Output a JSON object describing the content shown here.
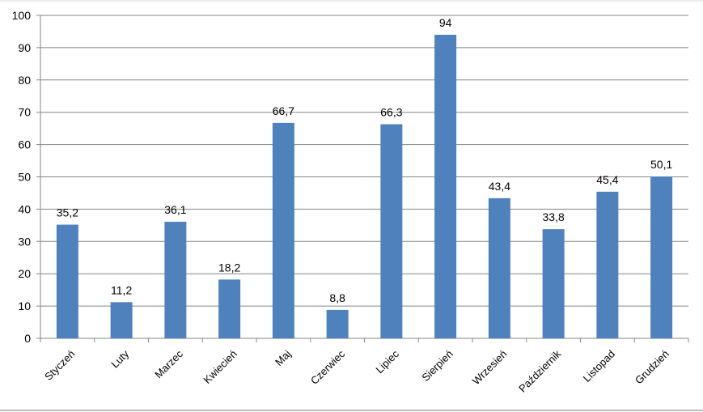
{
  "chart_data": {
    "type": "bar",
    "categories": [
      "Styczeń",
      "Luty",
      "Marzec",
      "Kwiecień",
      "Maj",
      "Czerwiec",
      "Lipiec",
      "Sierpień",
      "Wrzesień",
      "Październik",
      "Listopad",
      "Grudzień"
    ],
    "values": [
      35.2,
      11.2,
      36.1,
      18.2,
      66.7,
      8.8,
      66.3,
      94,
      43.4,
      33.8,
      45.4,
      50.1
    ],
    "data_labels": [
      "35,2",
      "11,2",
      "36,1",
      "18,2",
      "66,7",
      "8,8",
      "66,3",
      "94",
      "43,4",
      "33,8",
      "45,4",
      "50,1"
    ],
    "title": "",
    "xlabel": "",
    "ylabel": "",
    "ylim": [
      0,
      100
    ],
    "yticks": [
      0,
      10,
      20,
      30,
      40,
      50,
      60,
      70,
      80,
      90,
      100
    ],
    "grid": true,
    "legend": "none",
    "bar_color": "#4f81bd",
    "grid_color": "#868686"
  }
}
